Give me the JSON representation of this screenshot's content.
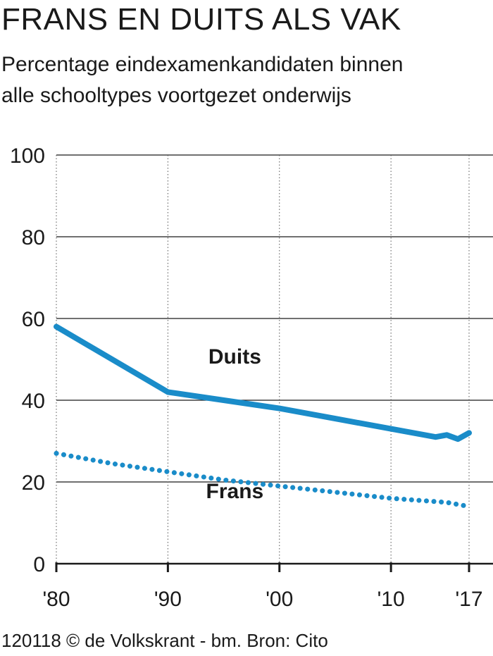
{
  "header": {
    "title": "FRANS EN DUITS ALS VAK",
    "subtitle_line1": "Percentage eindexamenkandidaten binnen",
    "subtitle_line2": "alle schooltypes voortgezet onderwijs"
  },
  "footer": {
    "credit": "120118 © de Volkskrant - bm. Bron: Cito"
  },
  "colors": {
    "series": "#1a8cc9",
    "grid": "#1a1a1a",
    "text": "#1a1a1a"
  },
  "chart_data": {
    "type": "line",
    "title": "FRANS EN DUITS ALS VAK",
    "subtitle": "Percentage eindexamenkandidaten binnen alle schooltypes voortgezet onderwijs",
    "xlabel": "",
    "ylabel": "",
    "xlim": [
      1980,
      2017
    ],
    "ylim": [
      0,
      100
    ],
    "y_ticks": [
      0,
      20,
      40,
      60,
      80,
      100
    ],
    "y_tick_labels": [
      "0",
      "20",
      "40",
      "60",
      "80",
      "100"
    ],
    "x_ticks": [
      1980,
      1990,
      2000,
      2010,
      2017
    ],
    "x_tick_labels": [
      "'80",
      "'90",
      "'00",
      "'10",
      "'17"
    ],
    "grid": "horizontal solid, vertical dotted",
    "legend": "inline labels",
    "series": [
      {
        "name": "Duits",
        "style": "solid",
        "x": [
          1980,
          1990,
          1995,
          2000,
          2005,
          2010,
          2014,
          2015,
          2016,
          2017
        ],
        "y": [
          58,
          42,
          40,
          38,
          35.5,
          33,
          31,
          31.5,
          30.5,
          32
        ]
      },
      {
        "name": "Frans",
        "style": "dotted",
        "x": [
          1980,
          1985,
          1990,
          1995,
          2000,
          2005,
          2010,
          2015,
          2017
        ],
        "y": [
          27,
          24.5,
          22.5,
          20.5,
          19,
          17.5,
          16,
          15,
          14
        ]
      }
    ]
  }
}
